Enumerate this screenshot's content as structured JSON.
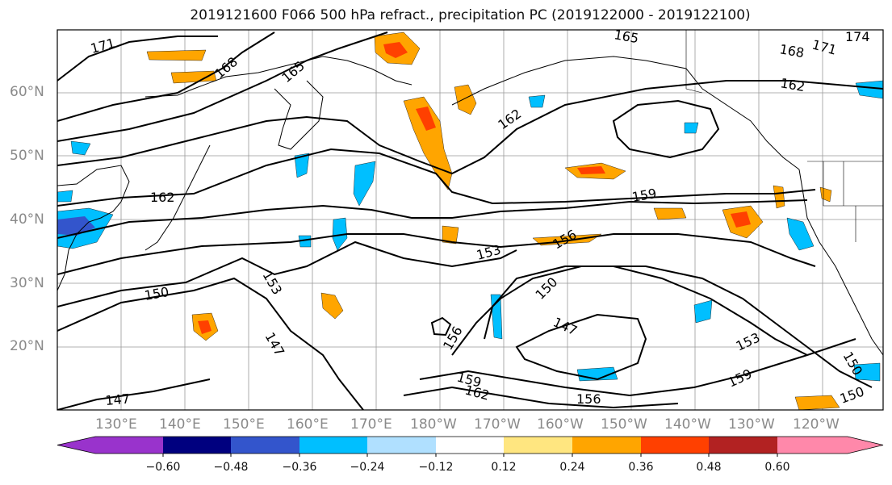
{
  "title": "2019121600 F066 500 hPa refract., precipitation PC (2019122000 - 2019122100)",
  "map": {
    "lat_labels": [
      "60°N",
      "50°N",
      "40°N",
      "30°N",
      "20°N"
    ],
    "lon_labels": [
      "130°E",
      "140°E",
      "150°E",
      "160°E",
      "170°E",
      "180°W",
      "170°W",
      "160°W",
      "150°W",
      "140°W",
      "130°W",
      "120°W"
    ],
    "contour_labels": [
      "171",
      "168",
      "165",
      "165",
      "171",
      "168",
      "174",
      "162",
      "162",
      "162",
      "159",
      "156",
      "153",
      "153",
      "150",
      "150",
      "147",
      "147",
      "156",
      "159",
      "162",
      "156",
      "153",
      "159",
      "150",
      "150",
      "147"
    ]
  },
  "colorbar": {
    "colors": [
      "#9933cc",
      "#00007f",
      "#3355cc",
      "#00bfff",
      "#b0e0ff",
      "#ffffff",
      "#ffe680",
      "#ffa500",
      "#ff4000",
      "#b22222",
      "#ff88aa"
    ],
    "tick_labels": [
      "−0.60",
      "−0.48",
      "−0.36",
      "−0.24",
      "−0.12",
      "0.12",
      "0.24",
      "0.36",
      "0.48",
      "0.60"
    ]
  },
  "colors": {
    "contour": "#000000",
    "coast": "#000000",
    "grid": "#999999",
    "positive": "#ffa500",
    "negative": "#00bfff"
  }
}
